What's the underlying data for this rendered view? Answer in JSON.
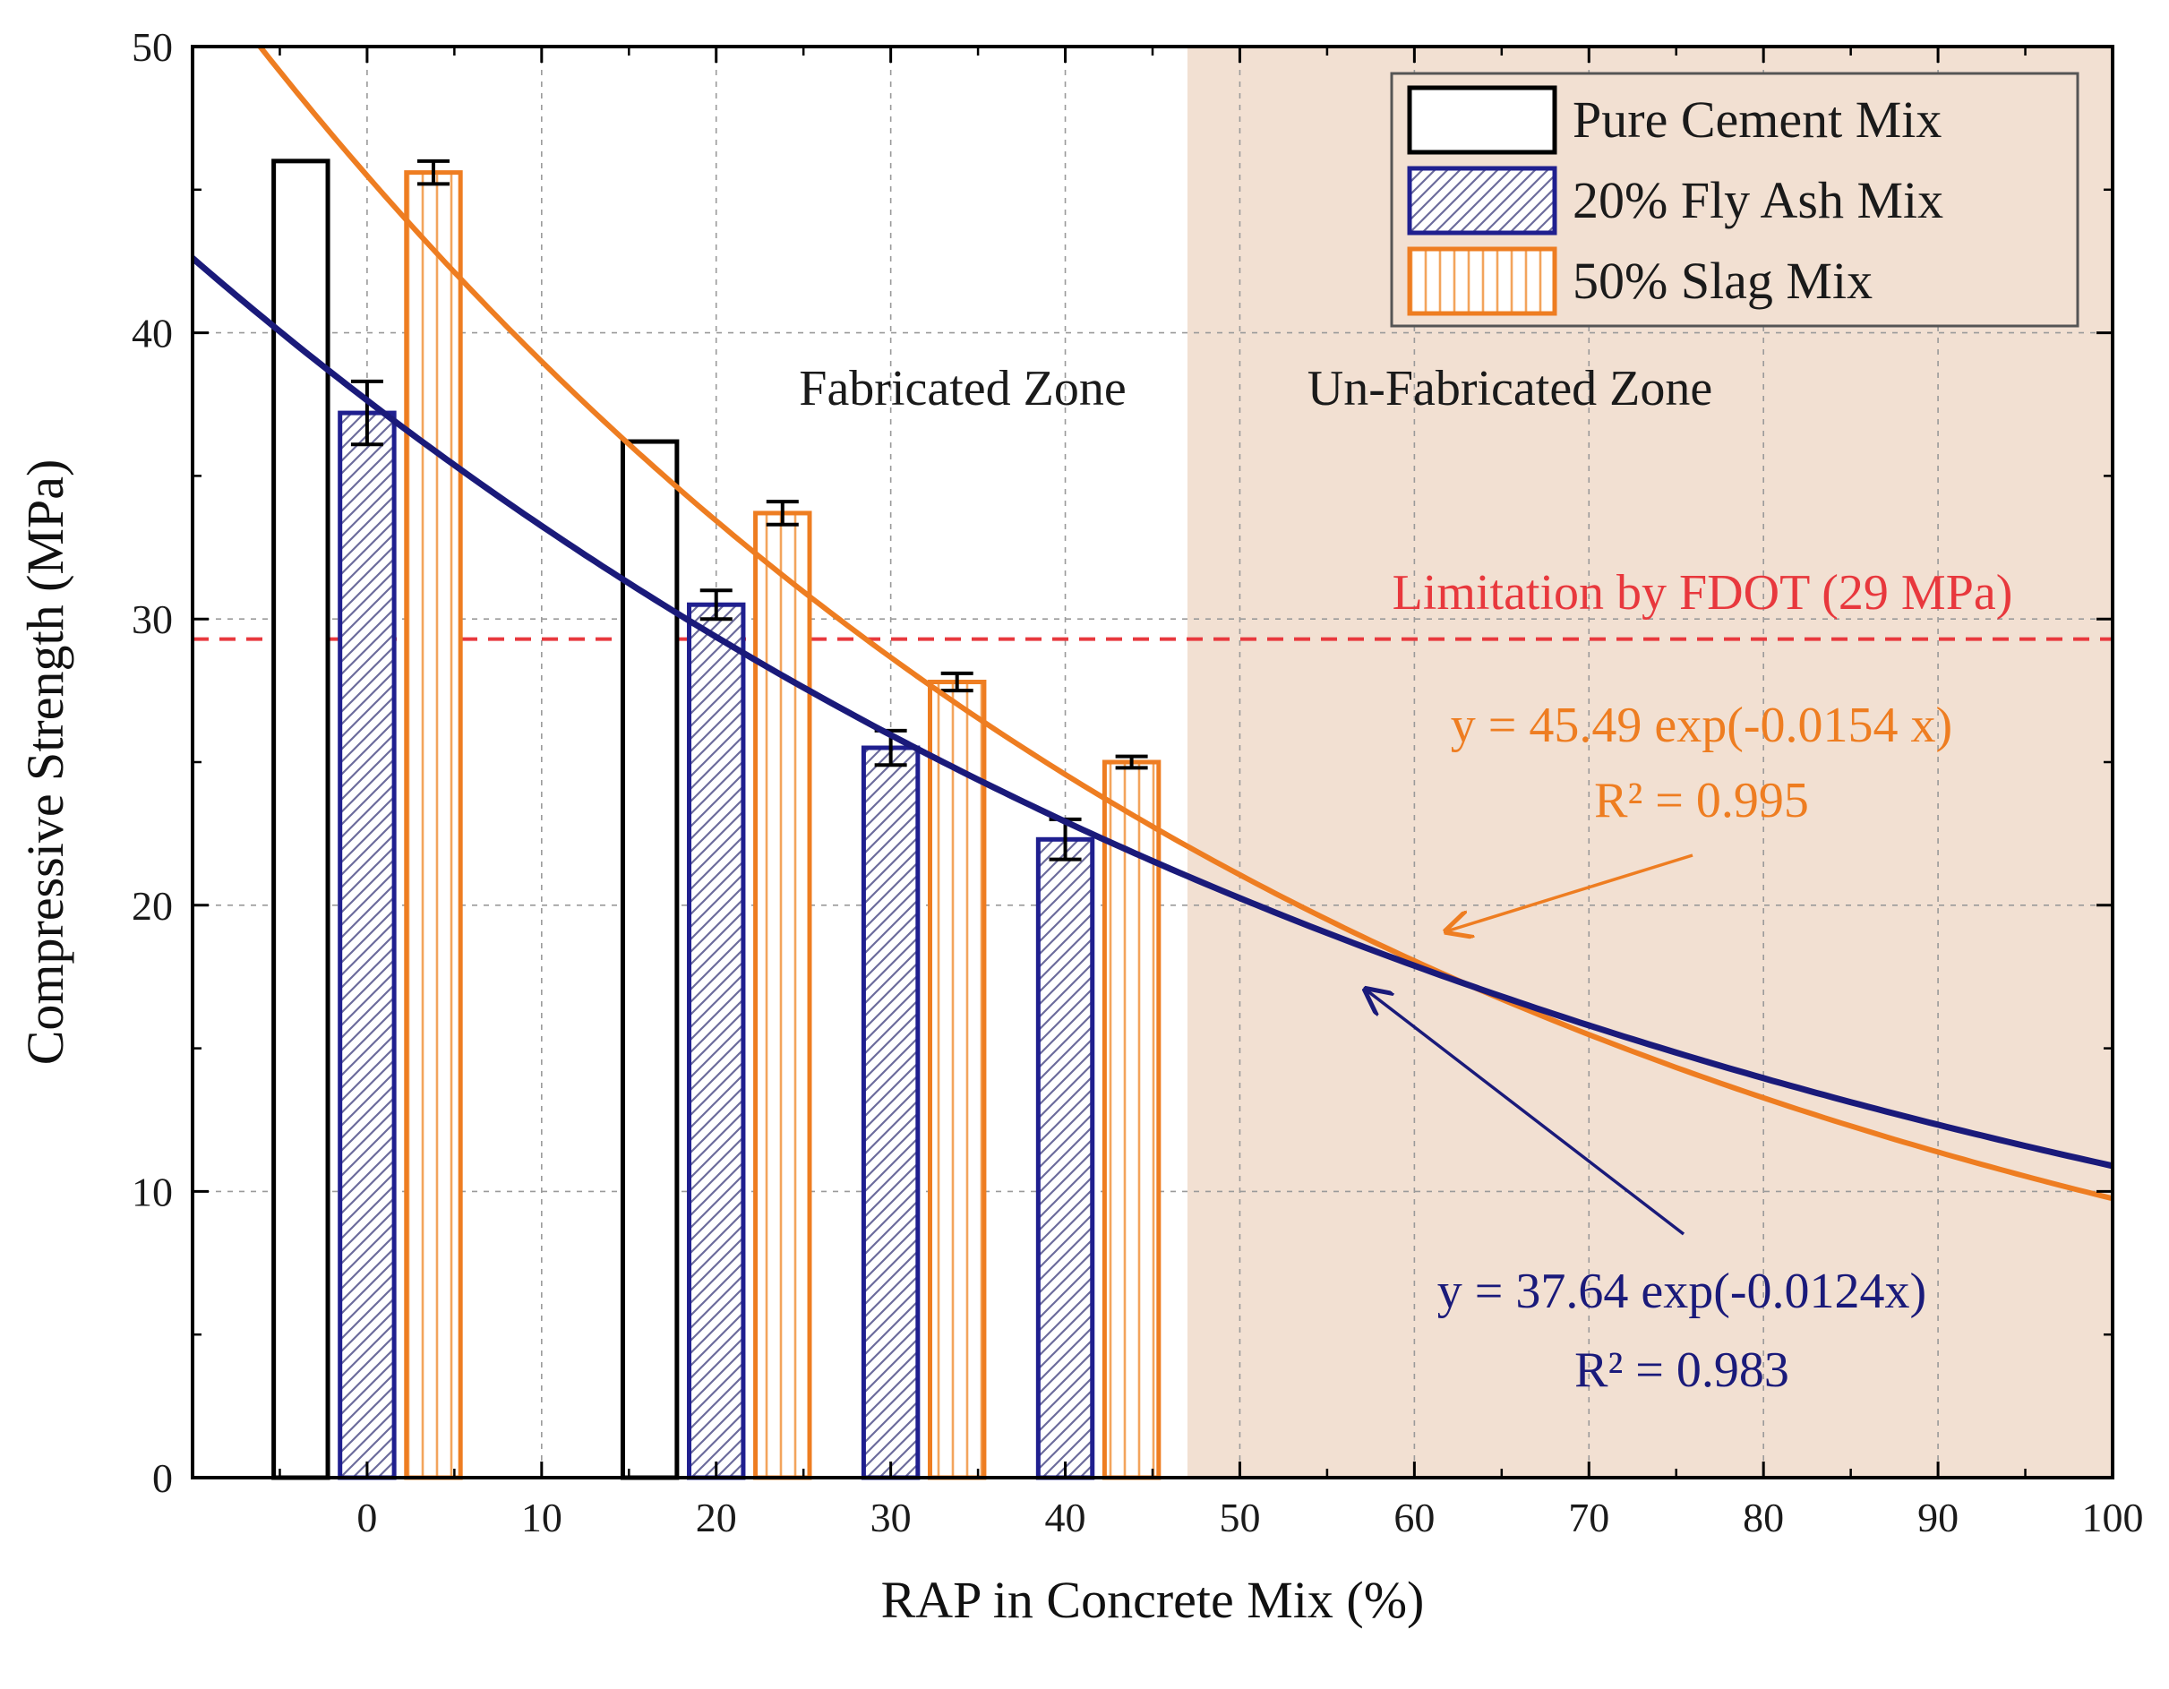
{
  "chart_data": {
    "type": "bar",
    "xlabel": "RAP in Concrete Mix (%)",
    "ylabel": "Compressive Strength (MPa)",
    "xlim": [
      -10,
      100
    ],
    "ylim": [
      0,
      50
    ],
    "x_ticks": [
      0,
      10,
      20,
      30,
      40,
      50,
      60,
      70,
      80,
      90,
      100
    ],
    "y_ticks": [
      0,
      10,
      20,
      30,
      40,
      50
    ],
    "grid": true,
    "legend_position": "top-right",
    "categories": [
      0,
      20,
      30,
      40
    ],
    "series": [
      {
        "name": "Pure Cement Mix",
        "color": "#000000",
        "fill": "none",
        "values": [
          46.0,
          36.2,
          null,
          null
        ],
        "errors": [
          null,
          null,
          null,
          null
        ]
      },
      {
        "name": "20% Fly Ash Mix",
        "color": "#1f1f8f",
        "fill": "diagonal-hatch",
        "values": [
          37.2,
          30.5,
          25.5,
          22.3
        ],
        "errors": [
          1.1,
          0.5,
          0.6,
          0.7
        ]
      },
      {
        "name": "50% Slag Mix",
        "color": "#ee7d21",
        "fill": "vertical-hatch",
        "values": [
          45.6,
          33.7,
          27.8,
          25.0
        ],
        "errors": [
          0.4,
          0.4,
          0.3,
          0.2
        ]
      }
    ],
    "fits": [
      {
        "series": "50% Slag Mix",
        "color": "#ee7d21",
        "a": 45.49,
        "b": -0.0154,
        "equation": "y = 45.49 exp(-0.0154 x)",
        "r2": "R² = 0.995"
      },
      {
        "series": "20% Fly Ash Mix",
        "color": "#1a1a7a",
        "a": 37.64,
        "b": -0.0124,
        "equation": "y = 37.64 exp(-0.0124x)",
        "r2": "R² = 0.983"
      }
    ],
    "reference_line": {
      "y": 29.3,
      "label": "Limitation by FDOT (29 MPa)",
      "color": "#e8383d"
    },
    "zones": {
      "fabricated": "Fabricated Zone",
      "unfabricated": "Un-Fabricated Zone",
      "boundary_x": 47,
      "unfabricated_color": "#f2e0d2"
    }
  }
}
